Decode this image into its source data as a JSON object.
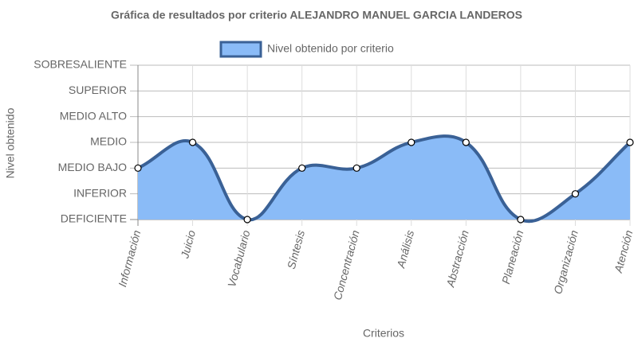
{
  "chart_data": {
    "type": "line",
    "title": "Gráfica de resultados por criterio ALEJANDRO MANUEL GARCIA LANDEROS",
    "x_label": "Criterios",
    "y_label": "Nivel obtenido",
    "categories": [
      "Información",
      "Juicio",
      "Vocabulario",
      "Síntesis",
      "Concentración",
      "Análisis",
      "Abstracción",
      "Planeación",
      "Organización",
      "Atención"
    ],
    "series": [
      {
        "name": "Nivel obtenido por criterio",
        "color": "#3a6196",
        "fill": "#8abbf7",
        "values": [
          2,
          3,
          0,
          2,
          2,
          3,
          3,
          0,
          1,
          3
        ]
      }
    ],
    "ylim": [
      0,
      6
    ],
    "yticks": [
      {
        "value": 0,
        "label": "DEFICIENTE"
      },
      {
        "value": 1,
        "label": "INFERIOR"
      },
      {
        "value": 2,
        "label": "MEDIO BAJO"
      },
      {
        "value": 3,
        "label": "MEDIO"
      },
      {
        "value": 4,
        "label": "MEDIO ALTO"
      },
      {
        "value": 5,
        "label": "SUPERIOR"
      },
      {
        "value": 6,
        "label": "SOBRESALIENTE"
      }
    ],
    "grid": true,
    "legend": "top"
  }
}
